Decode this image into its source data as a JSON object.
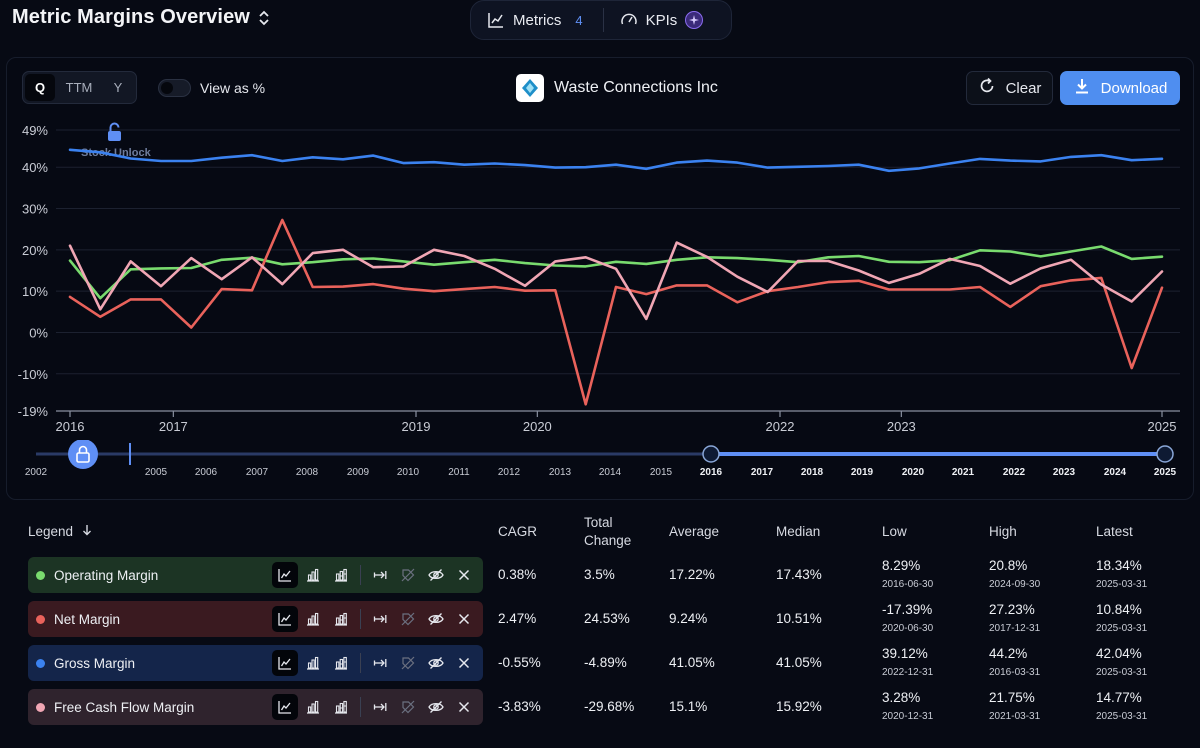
{
  "header": {
    "title": "Metric Margins Overview",
    "tabs": [
      {
        "label": "Metrics",
        "badge": "4"
      },
      {
        "label": "KPIs"
      }
    ]
  },
  "toolbar": {
    "periods": [
      "Q",
      "TTM",
      "Y"
    ],
    "selected_period": "Q",
    "view_as_percent_label": "View as %",
    "view_as_percent_on": false,
    "company": "Waste Connections Inc",
    "clear_label": "Clear",
    "download_label": "Download",
    "accent": "#4f8ef0"
  },
  "watermark": "Stock Unlock",
  "chart_data": {
    "type": "line",
    "x": [
      "2016-03-31",
      "2016-06-30",
      "2016-09-30",
      "2016-12-31",
      "2017-03-31",
      "2017-06-30",
      "2017-09-30",
      "2017-12-31",
      "2018-03-31",
      "2018-06-30",
      "2018-09-30",
      "2018-12-31",
      "2019-03-31",
      "2019-06-30",
      "2019-09-30",
      "2019-12-31",
      "2020-03-31",
      "2020-06-30",
      "2020-09-30",
      "2020-12-31",
      "2021-03-31",
      "2021-06-30",
      "2021-09-30",
      "2021-12-31",
      "2022-03-31",
      "2022-06-30",
      "2022-09-30",
      "2022-12-31",
      "2023-03-31",
      "2023-06-30",
      "2023-09-30",
      "2023-12-31",
      "2024-03-31",
      "2024-06-30",
      "2024-09-30",
      "2024-12-31",
      "2025-03-31"
    ],
    "x_tick_labels": [
      "2016",
      "2017",
      "2019",
      "2020",
      "2022",
      "2023",
      "2025"
    ],
    "y_tick_labels": [
      "49%",
      "40%",
      "30%",
      "20%",
      "10%",
      "0%",
      "-10%",
      "-19%"
    ],
    "ylim": [
      -19,
      49
    ],
    "grid": true,
    "series": [
      {
        "name": "Operating Margin",
        "color": "#79db6e",
        "values": [
          17.4,
          8.29,
          15.3,
          15.5,
          15.6,
          17.6,
          18.1,
          16.5,
          17.0,
          17.7,
          17.9,
          17.2,
          16.4,
          17.0,
          17.6,
          16.8,
          16.2,
          16.0,
          17.1,
          16.6,
          17.6,
          18.2,
          18.0,
          17.6,
          17.0,
          18.2,
          18.5,
          17.1,
          17.0,
          17.5,
          19.9,
          19.6,
          18.4,
          19.6,
          20.8,
          17.8,
          18.34
        ]
      },
      {
        "name": "Net Margin",
        "color": "#e9625b",
        "values": [
          8.6,
          3.8,
          8.0,
          8.0,
          1.2,
          10.5,
          10.2,
          27.23,
          11.0,
          11.1,
          11.7,
          10.6,
          10.0,
          10.5,
          11.0,
          10.1,
          10.2,
          -17.39,
          11.0,
          9.3,
          11.4,
          11.4,
          7.3,
          10.0,
          11.0,
          12.2,
          12.5,
          10.4,
          10.4,
          10.4,
          11.0,
          6.2,
          11.2,
          12.6,
          13.2,
          -8.6,
          10.84
        ]
      },
      {
        "name": "Gross Margin",
        "color": "#3b82f0",
        "values": [
          44.2,
          43.6,
          42.1,
          41.5,
          41.5,
          42.3,
          42.9,
          41.5,
          42.4,
          41.9,
          42.8,
          41.0,
          41.2,
          40.6,
          40.9,
          40.5,
          39.9,
          40.0,
          40.6,
          39.6,
          41.1,
          41.6,
          41.1,
          39.9,
          40.1,
          40.3,
          40.6,
          39.12,
          39.7,
          40.9,
          42.0,
          41.6,
          41.4,
          42.5,
          42.9,
          41.7,
          42.04
        ]
      },
      {
        "name": "Free Cash Flow Margin",
        "color": "#f0a6b4",
        "values": [
          21.0,
          5.6,
          17.2,
          11.2,
          18.0,
          12.9,
          18.2,
          11.7,
          19.2,
          20.0,
          15.8,
          16.0,
          20.0,
          18.5,
          15.4,
          11.3,
          17.2,
          18.2,
          15.4,
          3.28,
          21.75,
          18.3,
          13.5,
          9.8,
          17.3,
          17.3,
          15.0,
          12.0,
          14.2,
          17.8,
          16.1,
          11.8,
          15.5,
          17.6,
          11.6,
          7.5,
          14.77
        ]
      }
    ]
  },
  "timeline": {
    "years": [
      "2002",
      "2005",
      "2006",
      "2007",
      "2008",
      "2009",
      "2010",
      "2011",
      "2012",
      "2013",
      "2014",
      "2015",
      "2016",
      "2017",
      "2018",
      "2019",
      "2020",
      "2021",
      "2022",
      "2023",
      "2024",
      "2025"
    ],
    "range_start": "2016",
    "range_end": "2025"
  },
  "legend": {
    "header": "Legend",
    "columns": [
      "CAGR",
      "Total Change",
      "Average",
      "Median",
      "Low",
      "High",
      "Latest"
    ],
    "rows": [
      {
        "name": "Operating Margin",
        "color": "#79db6e",
        "bg": "#1c3424",
        "cagr": "0.38%",
        "total_change": "3.5%",
        "average": "17.22%",
        "median": "17.43%",
        "low": "8.29%",
        "low_date": "2016-06-30",
        "high": "20.8%",
        "high_date": "2024-09-30",
        "latest": "18.34%",
        "latest_date": "2025-03-31"
      },
      {
        "name": "Net Margin",
        "color": "#e9625b",
        "bg": "#3a1a20",
        "cagr": "2.47%",
        "total_change": "24.53%",
        "average": "9.24%",
        "median": "10.51%",
        "low": "-17.39%",
        "low_date": "2020-06-30",
        "high": "27.23%",
        "high_date": "2017-12-31",
        "latest": "10.84%",
        "latest_date": "2025-03-31"
      },
      {
        "name": "Gross Margin",
        "color": "#3b82f0",
        "bg": "#14254a",
        "cagr": "-0.55%",
        "total_change": "-4.89%",
        "average": "41.05%",
        "median": "41.05%",
        "low": "39.12%",
        "low_date": "2022-12-31",
        "high": "44.2%",
        "high_date": "2016-03-31",
        "latest": "42.04%",
        "latest_date": "2025-03-31"
      },
      {
        "name": "Free Cash Flow Margin",
        "color": "#f0a6b4",
        "bg": "#2f232d",
        "cagr": "-3.83%",
        "total_change": "-29.68%",
        "average": "15.1%",
        "median": "15.92%",
        "low": "3.28%",
        "low_date": "2020-12-31",
        "high": "21.75%",
        "high_date": "2021-03-31",
        "latest": "14.77%",
        "latest_date": "2025-03-31"
      }
    ]
  }
}
